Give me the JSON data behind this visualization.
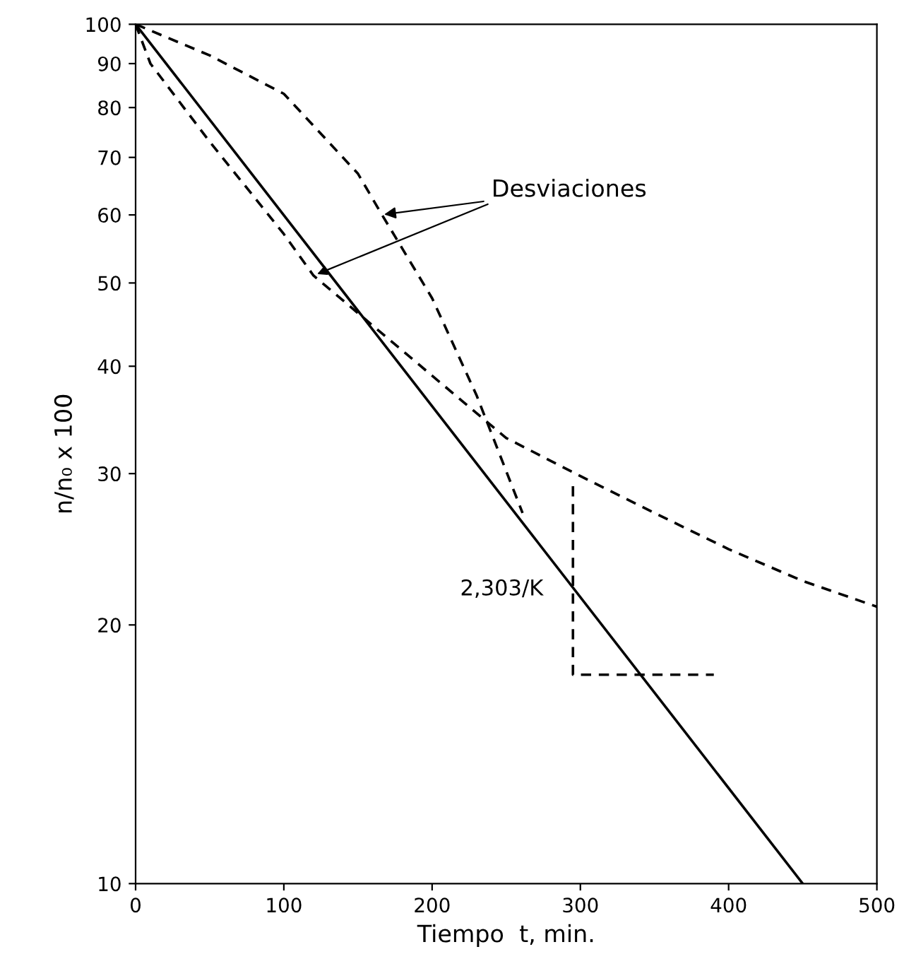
{
  "chart_data": {
    "type": "line",
    "xlabel": "Tiempo  t, min.",
    "ylabel": "n/n₀ x 100",
    "log": "y",
    "xlim": [
      0,
      500
    ],
    "ylim": [
      10,
      100
    ],
    "xticks": [
      0,
      100,
      200,
      300,
      400,
      500
    ],
    "yticks": [
      10,
      20,
      30,
      40,
      50,
      60,
      70,
      80,
      90,
      100
    ],
    "grid": false,
    "series": [
      {
        "color": "#000000",
        "line_style": "solid",
        "x": [
          0,
          450
        ],
        "values": [
          100,
          10
        ]
      },
      {
        "color": "#000000",
        "line_style": "dashed",
        "x": [
          0,
          50,
          100,
          150,
          165,
          200,
          230,
          261
        ],
        "values": [
          100,
          92,
          83,
          67,
          60.5,
          48,
          37,
          27
        ]
      },
      {
        "color": "#000000",
        "line_style": "dashed",
        "x": [
          0,
          10,
          50,
          100,
          120,
          200,
          250,
          300,
          350,
          400,
          450,
          500
        ],
        "values": [
          100,
          90,
          73,
          57,
          51,
          39,
          33,
          29.8,
          27,
          24.5,
          22.5,
          21
        ]
      },
      {
        "color": "#000000",
        "line_style": "dashed",
        "x": [
          295,
          295,
          390
        ],
        "values": [
          29,
          17.5,
          17.5
        ]
      }
    ],
    "annotations": [
      {
        "text": "Desviaciones",
        "x": 165,
        "y": 60
      },
      {
        "text": "2,303/K",
        "x": 295,
        "y": 22
      }
    ]
  }
}
